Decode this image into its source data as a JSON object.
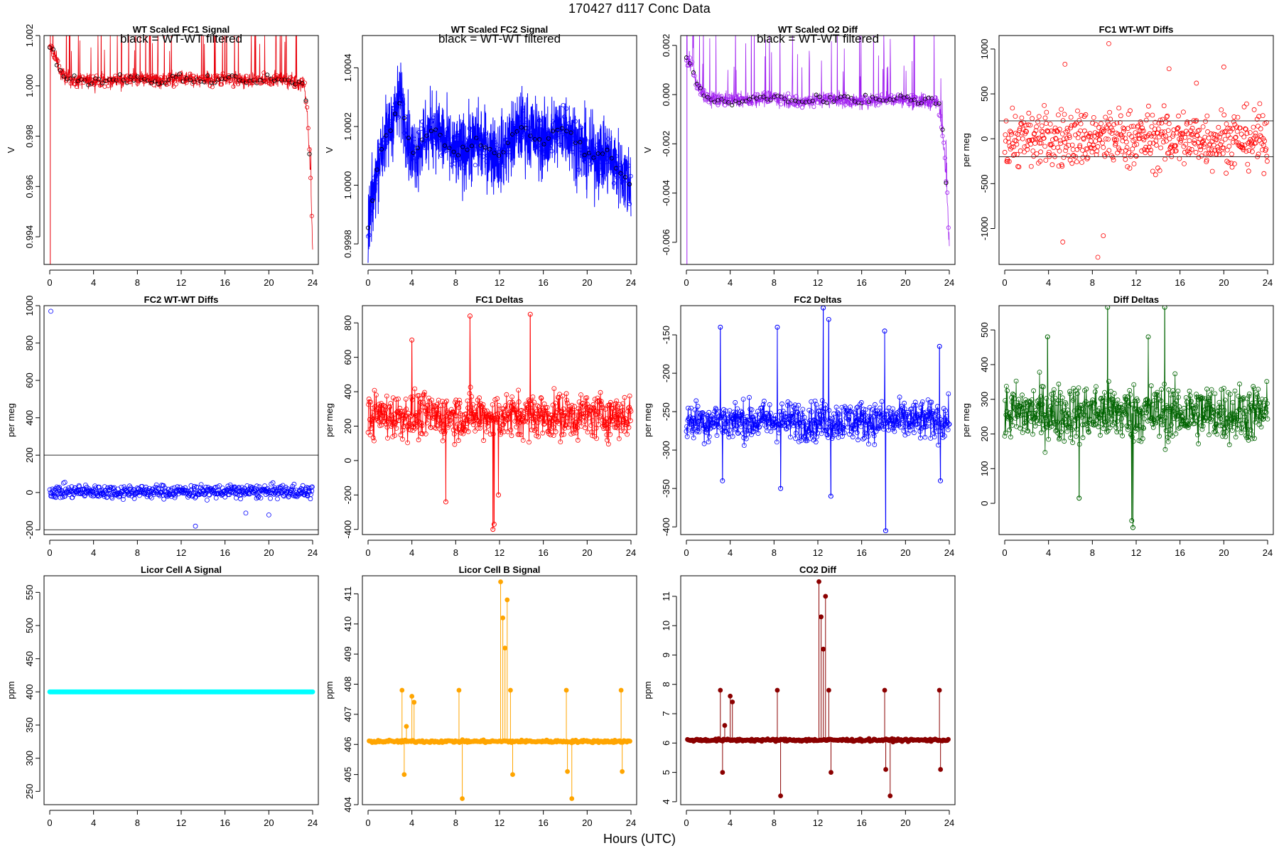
{
  "page": {
    "title": "170427   d117   Conc Data",
    "x_axis_label": "Hours (UTC)"
  },
  "chart_data": [
    {
      "type": "line",
      "title": "WT Scaled FC1 Signal",
      "annotation": "black = WT-WT filtered",
      "ylabel": "V",
      "xlim": [
        0,
        24
      ],
      "ylim": [
        0.9929,
        1.002
      ],
      "xticks": [
        0,
        4,
        8,
        12,
        16,
        20,
        24
      ],
      "yticks": [
        0.994,
        0.996,
        0.998,
        1.0,
        1.002
      ],
      "ytick_labels": [
        "0.994",
        "0.996",
        "0.998",
        "1.000",
        "1.002"
      ],
      "color": "#e8000b",
      "overlay_color": "#000000",
      "series_kind": "noisy-line-with-points",
      "x": [
        0,
        0.5,
        1,
        2,
        3,
        4,
        6,
        8,
        10,
        12,
        14,
        16,
        18,
        20,
        22,
        23.2,
        23.5,
        23.8,
        24
      ],
      "y": [
        1.0015,
        1.0012,
        1.0005,
        1.0002,
        1.0002,
        1.0002,
        1.0002,
        1.0003,
        1.0002,
        1.0003,
        1.0002,
        1.0003,
        1.0002,
        1.0003,
        1.0002,
        1.0001,
        0.999,
        0.9965,
        0.9935
      ]
    },
    {
      "type": "line",
      "title": "WT Scaled FC2 Signal",
      "annotation": "black = WT-WT filtered",
      "ylabel": "V",
      "xlim": [
        0,
        24
      ],
      "ylim": [
        0.99973,
        1.00051
      ],
      "xticks": [
        0,
        4,
        8,
        12,
        16,
        20,
        24
      ],
      "yticks": [
        0.9998,
        1.0,
        1.0002,
        1.0004
      ],
      "ytick_labels": [
        "0.9998",
        "1.0000",
        "1.0002",
        "1.0004"
      ],
      "color": "#0000ff",
      "overlay_color": "#000000",
      "series_kind": "noisy-line-dense",
      "x": [
        0,
        1,
        2,
        3,
        4,
        5,
        6,
        8,
        10,
        12,
        14,
        16,
        18,
        20,
        22,
        24
      ],
      "y": [
        0.99985,
        1.0001,
        1.0002,
        1.0003,
        1.0001,
        1.00015,
        1.0002,
        1.0001,
        1.00015,
        1.0001,
        1.0002,
        1.00015,
        1.0002,
        1.0001,
        1.0001,
        1.0
      ]
    },
    {
      "type": "line",
      "title": "WT Scaled O2 Diff",
      "annotation": "black = WT-WT filtered",
      "ylabel": "V",
      "xlim": [
        0,
        24
      ],
      "ylim": [
        -0.0069,
        0.0024
      ],
      "xticks": [
        0,
        4,
        8,
        12,
        16,
        20,
        24
      ],
      "yticks": [
        -0.006,
        -0.004,
        -0.002,
        0.0,
        0.002
      ],
      "ytick_labels": [
        "-0.006",
        "-0.004",
        "-0.002",
        "0.000",
        "0.002"
      ],
      "color": "#a020f0",
      "overlay_color": "#000000",
      "series_kind": "noisy-line-with-points",
      "x": [
        0,
        0.5,
        1,
        2,
        4,
        6,
        8,
        10,
        12,
        14,
        16,
        18,
        20,
        22,
        23,
        23.5,
        23.8,
        24
      ],
      "y": [
        0.0015,
        0.0012,
        0.0003,
        -0.0002,
        -0.0002,
        -0.0002,
        -0.0001,
        -0.0003,
        -0.0002,
        -0.0002,
        -0.0003,
        -0.0002,
        -0.0002,
        -0.0003,
        -0.0003,
        -0.002,
        -0.004,
        -0.0062
      ]
    },
    {
      "type": "scatter",
      "title": "FC1 WT-WT Diffs",
      "ylabel": "per meg",
      "xlim": [
        0,
        24
      ],
      "ylim": [
        -1400,
        1150
      ],
      "xticks": [
        0,
        4,
        8,
        12,
        16,
        20,
        24
      ],
      "yticks": [
        -1000,
        -500,
        0,
        500,
        1000
      ],
      "ytick_labels": [
        "-1000",
        "-500",
        "0",
        "500",
        "1000"
      ],
      "color": "#ff0000",
      "hlines": [
        200,
        -200
      ],
      "scatter_center": 0,
      "scatter_spread": 230,
      "outliers": [
        [
          5.3,
          -1150
        ],
        [
          9,
          -1080
        ],
        [
          8.5,
          -1320
        ],
        [
          9.5,
          1060
        ],
        [
          15,
          780
        ],
        [
          20,
          800
        ],
        [
          5.5,
          830
        ],
        [
          17.5,
          620
        ]
      ]
    },
    {
      "type": "scatter",
      "title": "FC2 WT-WT Diffs",
      "ylabel": "per meg",
      "xlim": [
        0,
        24
      ],
      "ylim": [
        -225,
        1000
      ],
      "xticks": [
        0,
        4,
        8,
        12,
        16,
        20,
        24
      ],
      "yticks": [
        -200,
        0,
        200,
        400,
        600,
        800,
        1000
      ],
      "ytick_labels": [
        "-200",
        "0",
        "200",
        "400",
        "600",
        "800",
        "1000"
      ],
      "color": "#0000ff",
      "hlines": [
        200,
        -200
      ],
      "scatter_center": 5,
      "scatter_spread": 25,
      "outliers": [
        [
          0.1,
          970
        ],
        [
          13.3,
          -180
        ],
        [
          17.9,
          -110
        ],
        [
          20.0,
          -120
        ]
      ]
    },
    {
      "type": "line",
      "title": "FC1 Deltas",
      "ylabel": "per meg",
      "xlim": [
        0,
        24
      ],
      "ylim": [
        -430,
        900
      ],
      "xticks": [
        0,
        4,
        8,
        12,
        16,
        20,
        24
      ],
      "yticks": [
        -400,
        -200,
        0,
        200,
        400,
        600,
        800
      ],
      "ytick_labels": [
        "-400",
        "-200",
        "0",
        "200",
        "400",
        "600",
        "800"
      ],
      "color": "#ff0000",
      "series_kind": "noisy-line-points",
      "center": 260,
      "spread": 95,
      "spikes": [
        [
          11.4,
          -400
        ],
        [
          11.5,
          -370
        ],
        [
          14.8,
          850
        ],
        [
          9.3,
          840
        ],
        [
          4.0,
          700
        ],
        [
          7.1,
          -240
        ],
        [
          11.9,
          -200
        ]
      ]
    },
    {
      "type": "line",
      "title": "FC2 Deltas",
      "ylabel": "per meg",
      "xlim": [
        0,
        24
      ],
      "ylim": [
        -410,
        -112
      ],
      "xticks": [
        0,
        4,
        8,
        12,
        16,
        20,
        24
      ],
      "yticks": [
        -400,
        -350,
        -300,
        -250,
        -200,
        -150
      ],
      "ytick_labels": [
        "-400",
        "-350",
        "-300",
        "-250",
        "-200",
        "-150"
      ],
      "color": "#0000ff",
      "series_kind": "noisy-line-points",
      "center": -262,
      "spread": 18,
      "spikes": [
        [
          3.1,
          -140
        ],
        [
          3.3,
          -340
        ],
        [
          8.3,
          -140
        ],
        [
          8.6,
          -350
        ],
        [
          12.5,
          -115
        ],
        [
          13.0,
          -130
        ],
        [
          13.2,
          -360
        ],
        [
          18.1,
          -145
        ],
        [
          18.2,
          -405
        ],
        [
          23.1,
          -165
        ],
        [
          23.2,
          -340
        ]
      ]
    },
    {
      "type": "line",
      "title": "Diff Deltas",
      "ylabel": "per meg",
      "xlim": [
        0,
        24
      ],
      "ylim": [
        -90,
        570
      ],
      "xticks": [
        0,
        4,
        8,
        12,
        16,
        20,
        24
      ],
      "yticks": [
        0,
        100,
        200,
        300,
        400,
        500
      ],
      "ytick_labels": [
        "0",
        "100",
        "200",
        "300",
        "400",
        "500"
      ],
      "color": "#006400",
      "series_kind": "noisy-line-points",
      "center": 260,
      "spread": 60,
      "spikes": [
        [
          9.4,
          565
        ],
        [
          14.6,
          565
        ],
        [
          11.7,
          -70
        ],
        [
          11.6,
          -50
        ],
        [
          6.8,
          15
        ],
        [
          3.9,
          480
        ],
        [
          13.1,
          480
        ]
      ]
    },
    {
      "type": "scatter",
      "title": "Licor Cell A Signal",
      "ylabel": "ppm",
      "xlim": [
        0,
        24
      ],
      "ylim": [
        230,
        575
      ],
      "xticks": [
        0,
        4,
        8,
        12,
        16,
        20,
        24
      ],
      "yticks": [
        250,
        300,
        350,
        400,
        450,
        500,
        550
      ],
      "ytick_labels": [
        "250",
        "300",
        "350",
        "400",
        "450",
        "500",
        "550"
      ],
      "color": "#00ffff",
      "series_kind": "flat-band",
      "value": 400
    },
    {
      "type": "line",
      "title": "Licor Cell B Signal",
      "ylabel": "ppm",
      "xlim": [
        0,
        24
      ],
      "ylim": [
        404,
        411.6
      ],
      "xticks": [
        0,
        4,
        8,
        12,
        16,
        20,
        24
      ],
      "yticks": [
        404,
        405,
        406,
        407,
        408,
        409,
        410,
        411
      ],
      "ytick_labels": [
        "404",
        "405",
        "406",
        "407",
        "408",
        "409",
        "410",
        "411"
      ],
      "color": "#ffa500",
      "series_kind": "baseline-with-spikes",
      "baseline": 406.1,
      "spikes": [
        [
          3.1,
          407.8
        ],
        [
          3.3,
          405.0
        ],
        [
          3.5,
          406.6
        ],
        [
          4.0,
          407.6
        ],
        [
          4.2,
          407.4
        ],
        [
          8.3,
          407.8
        ],
        [
          8.6,
          404.2
        ],
        [
          12.1,
          411.4
        ],
        [
          12.3,
          410.2
        ],
        [
          12.5,
          409.2
        ],
        [
          12.7,
          410.8
        ],
        [
          13.0,
          407.8
        ],
        [
          13.2,
          405.0
        ],
        [
          18.1,
          407.8
        ],
        [
          18.2,
          405.1
        ],
        [
          18.6,
          404.2
        ],
        [
          23.1,
          407.8
        ],
        [
          23.2,
          405.1
        ]
      ]
    },
    {
      "type": "line",
      "title": "CO2 Diff",
      "ylabel": "ppm",
      "xlim": [
        0,
        24
      ],
      "ylim": [
        3.9,
        11.7
      ],
      "xticks": [
        0,
        4,
        8,
        12,
        16,
        20,
        24
      ],
      "yticks": [
        4,
        5,
        6,
        7,
        8,
        9,
        10,
        11
      ],
      "ytick_labels": [
        "4",
        "5",
        "6",
        "7",
        "8",
        "9",
        "10",
        "11"
      ],
      "color": "#8b0000",
      "series_kind": "baseline-with-spikes",
      "baseline": 6.1,
      "spikes": [
        [
          3.1,
          7.8
        ],
        [
          3.3,
          5.0
        ],
        [
          3.5,
          6.6
        ],
        [
          4.0,
          7.6
        ],
        [
          4.2,
          7.4
        ],
        [
          8.3,
          7.8
        ],
        [
          8.6,
          4.2
        ],
        [
          12.1,
          11.5
        ],
        [
          12.3,
          10.3
        ],
        [
          12.5,
          9.2
        ],
        [
          12.7,
          11.0
        ],
        [
          13.0,
          7.8
        ],
        [
          13.2,
          5.0
        ],
        [
          18.1,
          7.8
        ],
        [
          18.2,
          5.1
        ],
        [
          18.6,
          4.2
        ],
        [
          23.1,
          7.8
        ],
        [
          23.2,
          5.1
        ]
      ]
    }
  ]
}
